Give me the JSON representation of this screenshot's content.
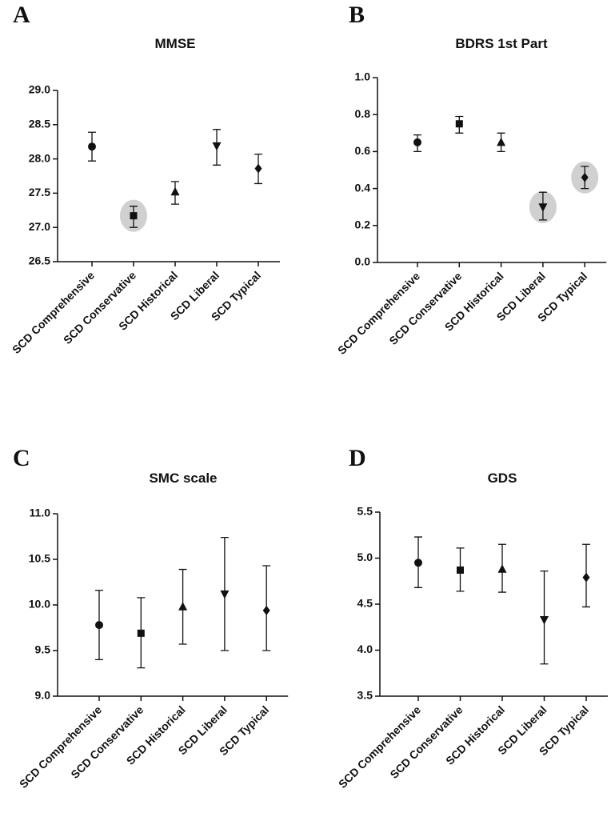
{
  "chart_data": [
    {
      "type": "errorbar",
      "panel": "A",
      "title": "MMSE",
      "categories": [
        "SCD Comprehensive",
        "SCD Conservative",
        "SCD Historical",
        "SCD Liberal",
        "SCD Typical"
      ],
      "values": [
        28.18,
        27.17,
        27.52,
        28.19,
        27.86
      ],
      "lower": [
        27.97,
        27.0,
        27.34,
        27.91,
        27.64
      ],
      "upper": [
        28.39,
        27.31,
        27.67,
        28.43,
        28.07
      ],
      "markers": [
        "circle",
        "square",
        "triangle-up",
        "triangle-down",
        "diamond"
      ],
      "highlight": [
        1
      ],
      "color": "#111111",
      "ylim": [
        26.5,
        29.0
      ],
      "yticks": [
        26.5,
        {
          "value": 27.0,
          "label": "27.0"
        },
        27.5,
        {
          "value": 28.0,
          "label": "28.0"
        },
        28.5,
        {
          "value": 29.0,
          "label": "29.0"
        }
      ]
    },
    {
      "type": "errorbar",
      "panel": "B",
      "title": "BDRS 1st Part",
      "categories": [
        "SCD Comprehensive",
        "SCD Conservative",
        "SCD Historical",
        "SCD Liberal",
        "SCD Typical"
      ],
      "values": [
        0.65,
        0.75,
        0.65,
        0.3,
        0.46
      ],
      "lower": [
        0.6,
        0.7,
        0.6,
        0.23,
        0.4
      ],
      "upper": [
        0.69,
        0.79,
        0.7,
        0.38,
        0.52
      ],
      "markers": [
        "circle",
        "square",
        "triangle-up",
        "triangle-down",
        "diamond"
      ],
      "highlight": [
        3,
        4
      ],
      "color": "#111111",
      "ylim": [
        0.0,
        1.0
      ],
      "yticks": [
        {
          "value": 0.0,
          "label": "0.0"
        },
        0.2,
        0.4,
        0.6,
        0.8,
        {
          "value": 1.0,
          "label": "1.0"
        }
      ]
    },
    {
      "type": "errorbar",
      "panel": "C",
      "title": "SMC scale",
      "categories": [
        "SCD Comprehensive",
        "SCD Conservative",
        "SCD Historical",
        "SCD Liberal",
        "SCD Typical"
      ],
      "values": [
        9.78,
        9.69,
        9.98,
        10.12,
        9.94
      ],
      "lower": [
        9.4,
        9.31,
        9.57,
        9.5,
        9.5
      ],
      "upper": [
        10.16,
        10.08,
        10.39,
        10.74,
        10.43
      ],
      "markers": [
        "circle",
        "square",
        "triangle-up",
        "triangle-down",
        "diamond"
      ],
      "highlight": [],
      "color": "#111111",
      "ylim": [
        9.0,
        11.0
      ],
      "yticks": [
        {
          "value": 9.0,
          "label": "9.0"
        },
        9.5,
        {
          "value": 10.0,
          "label": "10.0"
        },
        10.5,
        {
          "value": 11.0,
          "label": "11.0"
        }
      ]
    },
    {
      "type": "errorbar",
      "panel": "D",
      "title": "GDS",
      "categories": [
        "SCD Comprehensive",
        "SCD Conservative",
        "SCD Historical",
        "SCD Liberal",
        "SCD Typical"
      ],
      "values": [
        4.95,
        4.87,
        4.88,
        4.33,
        4.79
      ],
      "lower": [
        4.68,
        4.64,
        4.63,
        3.85,
        4.47
      ],
      "upper": [
        5.23,
        5.11,
        5.15,
        4.86,
        5.15
      ],
      "markers": [
        "circle",
        "square",
        "triangle-up",
        "triangle-down",
        "diamond"
      ],
      "highlight": [],
      "color": "#111111",
      "ylim": [
        3.5,
        5.5
      ],
      "yticks": [
        3.5,
        {
          "value": 4.0,
          "label": "4.0"
        },
        4.5,
        {
          "value": 5.0,
          "label": "5.0"
        },
        5.5
      ]
    }
  ]
}
